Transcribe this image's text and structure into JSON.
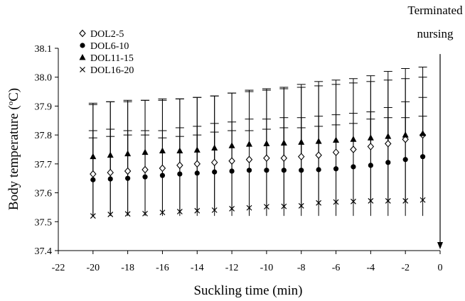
{
  "chart_data": {
    "type": "scatter",
    "xlabel": "Suckling time (min)",
    "ylabel_prefix": "Body temperature (",
    "ylabel_unit_sup": "o",
    "ylabel_suffix": "C)",
    "xlim": [
      -22,
      0
    ],
    "ylim": [
      37.4,
      38.1
    ],
    "x_ticks": [
      -22,
      -20,
      -18,
      -16,
      -14,
      -12,
      -10,
      -8,
      -6,
      -4,
      -2,
      0
    ],
    "y_ticks": [
      37.4,
      37.5,
      37.6,
      37.7,
      37.8,
      37.9,
      38.0,
      38.1
    ],
    "x_tick_labels": [
      "-22",
      "-20",
      "-18",
      "-16",
      "-14",
      "-12",
      "-10",
      "-8",
      "-6",
      "-4",
      "-2",
      "0"
    ],
    "y_tick_labels": [
      "37.4",
      "37.5",
      "37.6",
      "37.7",
      "37.8",
      "37.9",
      "38.0",
      "38.1"
    ],
    "grid": false,
    "legend_position": "top-left",
    "x": [
      -20,
      -19,
      -18,
      -17,
      -16,
      -15,
      -14,
      -13,
      -12,
      -11,
      -10,
      -9,
      -8,
      -7,
      -6,
      -5,
      -4,
      -3,
      -2,
      -1
    ],
    "series": [
      {
        "name": "DOL2-5",
        "marker": "diamond-open",
        "values": [
          37.665,
          37.67,
          37.675,
          37.68,
          37.685,
          37.695,
          37.7,
          37.705,
          37.71,
          37.715,
          37.72,
          37.72,
          37.725,
          37.73,
          37.74,
          37.75,
          37.76,
          37.77,
          37.785,
          37.8
        ],
        "error_upper": [
          37.815,
          37.82,
          37.815,
          37.815,
          37.815,
          37.825,
          37.83,
          37.84,
          37.845,
          37.855,
          37.855,
          37.86,
          37.86,
          37.865,
          37.87,
          37.875,
          37.88,
          37.895,
          37.915,
          37.93
        ]
      },
      {
        "name": "DOL6-10",
        "marker": "circle-filled",
        "values": [
          37.645,
          37.648,
          37.65,
          37.655,
          37.66,
          37.665,
          37.668,
          37.672,
          37.675,
          37.678,
          37.678,
          37.678,
          37.678,
          37.68,
          37.683,
          37.69,
          37.695,
          37.705,
          37.715,
          37.725
        ],
        "error_lower": [
          37.52,
          37.52,
          37.52,
          37.52,
          37.52,
          37.52,
          37.52,
          37.52,
          37.52,
          37.52,
          37.52,
          37.52,
          37.52,
          37.52,
          37.52,
          37.52,
          37.52,
          37.52,
          37.52,
          37.52
        ],
        "error_upper": [
          37.79,
          37.795,
          37.8,
          37.8,
          37.79,
          37.795,
          37.8,
          37.81,
          37.815,
          37.815,
          37.82,
          37.825,
          37.825,
          37.83,
          37.835,
          37.84,
          37.855,
          37.86,
          37.86,
          37.865
        ]
      },
      {
        "name": "DOL11-15",
        "marker": "triangle-filled",
        "values": [
          37.725,
          37.73,
          37.735,
          37.74,
          37.745,
          37.745,
          37.748,
          37.755,
          37.763,
          37.768,
          37.77,
          37.772,
          37.775,
          37.778,
          37.782,
          37.785,
          37.79,
          37.795,
          37.8,
          37.805
        ],
        "error_upper": [
          37.905,
          37.915,
          37.92,
          37.92,
          37.92,
          37.925,
          37.93,
          37.935,
          37.945,
          37.955,
          37.96,
          37.965,
          37.975,
          37.985,
          37.99,
          37.995,
          38.005,
          38.02,
          38.03,
          38.035
        ]
      },
      {
        "name": "DOL16-20",
        "marker": "x",
        "values": [
          37.52,
          37.525,
          37.527,
          37.528,
          37.532,
          37.535,
          37.538,
          37.54,
          37.545,
          37.548,
          37.552,
          37.553,
          37.555,
          37.565,
          37.568,
          37.57,
          37.572,
          37.572,
          37.572,
          37.575
        ],
        "error_upper": [
          37.91,
          37.915,
          37.915,
          37.92,
          37.925,
          37.925,
          37.93,
          37.935,
          37.945,
          37.95,
          37.955,
          37.96,
          37.965,
          37.97,
          37.975,
          37.98,
          37.985,
          37.99,
          37.995,
          38.0
        ]
      }
    ],
    "annotation": {
      "line1": "Terminated",
      "line2": "nursing",
      "arrow_x": 0,
      "arrow_from_y": 38.08,
      "arrow_to_y": 37.4
    }
  }
}
